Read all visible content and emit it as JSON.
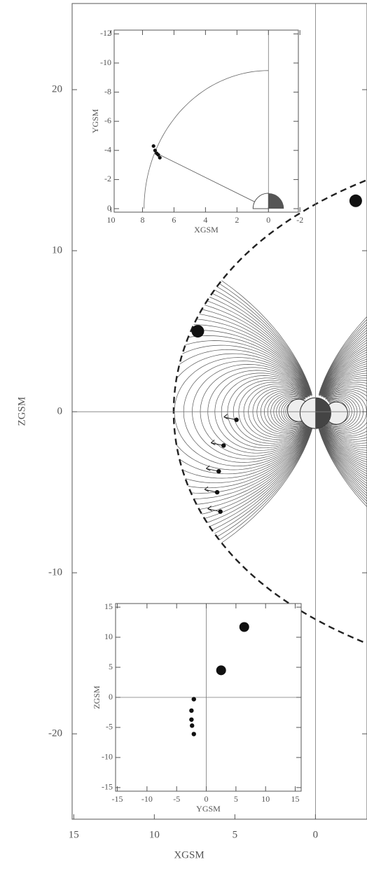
{
  "chart_data": [
    {
      "type": "scatter",
      "xlabel": "XGSM",
      "ylabel": "ZGSM",
      "xlim": [
        15.1,
        -3.2
      ],
      "ylim": [
        -25.3,
        25.35
      ],
      "xticks": [
        15,
        10,
        5,
        0
      ],
      "yticks": [
        20,
        10,
        0,
        -10,
        -20
      ],
      "series": [
        {
          "color": "#111",
          "marker": "large",
          "x": [
            -2.5,
            7.3
          ],
          "values": [
            13.1,
            5.0
          ]
        },
        {
          "color": "#111",
          "marker": "small",
          "x": [
            4.9,
            5.7,
            6.0,
            6.1,
            5.9
          ],
          "values": [
            -0.5,
            -2.1,
            -3.7,
            -5.0,
            -6.2
          ]
        }
      ]
    },
    {
      "type": "scatter",
      "xlabel": "XGSM",
      "ylabel": "YGSM",
      "xlim": [
        9.8,
        -1.9
      ],
      "ylim": [
        0.24,
        -12.26
      ],
      "xticks": [
        10,
        8,
        6,
        4,
        2,
        0,
        -2
      ],
      "yticks": [
        0,
        -2,
        -4,
        -6,
        -8,
        -10,
        -12
      ],
      "series": [
        {
          "color": "#111",
          "marker": "small",
          "x": [
            7.3,
            7.2,
            7.1,
            7.0,
            6.9
          ],
          "values": [
            -4.3,
            -4.0,
            -3.8,
            -3.7,
            -3.5
          ]
        }
      ]
    },
    {
      "type": "scatter",
      "xlabel": "YGSM",
      "ylabel": "ZGSM",
      "xlim": [
        -15.3,
        16
      ],
      "ylim": [
        -15.6,
        15.6
      ],
      "xticks": [
        -15,
        -10,
        -5,
        0,
        5,
        10,
        15
      ],
      "yticks": [
        15,
        10,
        5,
        0,
        -5,
        -10,
        -15
      ],
      "series": [
        {
          "color": "#111",
          "marker": "large",
          "x": [
            6.4,
            2.5
          ],
          "values": [
            11.7,
            4.5
          ]
        },
        {
          "color": "#111",
          "marker": "small",
          "x": [
            -2.1,
            -2.5,
            -2.5,
            -2.4,
            -2.1
          ],
          "values": [
            -0.3,
            -2.2,
            -3.7,
            -4.7,
            -6.1
          ]
        }
      ]
    }
  ]
}
